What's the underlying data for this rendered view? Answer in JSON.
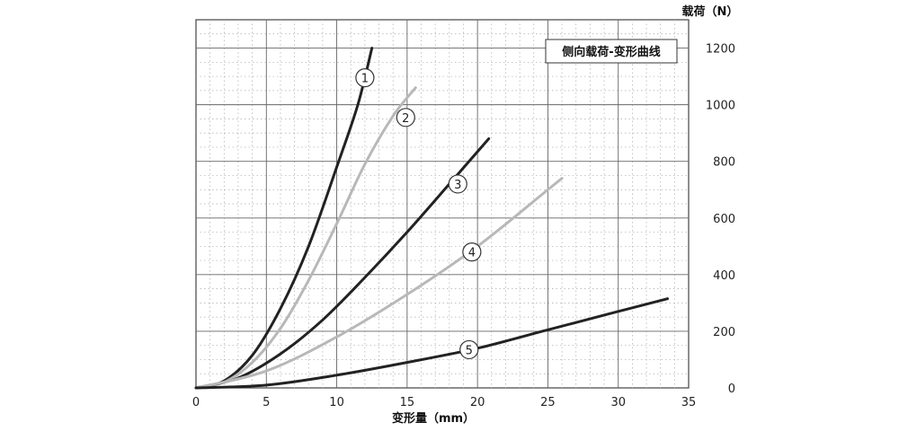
{
  "chart_data": {
    "type": "line",
    "title": "侧向载荷-变形曲线",
    "xlabel": "变形量（mm）",
    "ylabel": "载荷（N）",
    "xlim": [
      0,
      35
    ],
    "ylim": [
      0,
      1300
    ],
    "x_ticks": [
      "0",
      "5",
      "10",
      "15",
      "20",
      "25",
      "30",
      "35"
    ],
    "y_ticks": [
      "0",
      "200",
      "400",
      "600",
      "800",
      "1000",
      "1200"
    ],
    "grid": true,
    "y_axis_side": "right",
    "series": [
      {
        "marker_label": "1",
        "color": "#222222",
        "points": [
          [
            0,
            0
          ],
          [
            2,
            25
          ],
          [
            4,
            115
          ],
          [
            6,
            280
          ],
          [
            8,
            500
          ],
          [
            10,
            780
          ],
          [
            11.5,
            1000
          ],
          [
            12.5,
            1200
          ]
        ]
      },
      {
        "marker_label": "2",
        "color": "#b8b8b8",
        "points": [
          [
            0,
            0
          ],
          [
            2,
            20
          ],
          [
            4,
            90
          ],
          [
            6,
            210
          ],
          [
            8,
            380
          ],
          [
            10,
            580
          ],
          [
            12,
            790
          ],
          [
            14,
            960
          ],
          [
            15.6,
            1060
          ]
        ]
      },
      {
        "marker_label": "3",
        "color": "#222222",
        "points": [
          [
            0,
            0
          ],
          [
            3,
            35
          ],
          [
            6,
            120
          ],
          [
            9,
            240
          ],
          [
            12,
            390
          ],
          [
            15,
            550
          ],
          [
            18,
            720
          ],
          [
            20.8,
            880
          ]
        ]
      },
      {
        "marker_label": "4",
        "color": "#b8b8b8",
        "points": [
          [
            0,
            0
          ],
          [
            5,
            60
          ],
          [
            10,
            180
          ],
          [
            15,
            330
          ],
          [
            20,
            500
          ],
          [
            25,
            700
          ],
          [
            26,
            740
          ]
        ]
      },
      {
        "marker_label": "5",
        "color": "#222222",
        "points": [
          [
            0,
            0
          ],
          [
            5,
            10
          ],
          [
            10,
            45
          ],
          [
            15,
            90
          ],
          [
            20,
            140
          ],
          [
            25,
            205
          ],
          [
            30,
            270
          ],
          [
            33.5,
            315
          ]
        ]
      }
    ],
    "markers": [
      {
        "label": "1",
        "x": 12.0,
        "y": 1095
      },
      {
        "label": "2",
        "x": 14.9,
        "y": 955
      },
      {
        "label": "3",
        "x": 18.6,
        "y": 720
      },
      {
        "label": "4",
        "x": 19.6,
        "y": 480
      },
      {
        "label": "5",
        "x": 19.4,
        "y": 135
      }
    ]
  }
}
